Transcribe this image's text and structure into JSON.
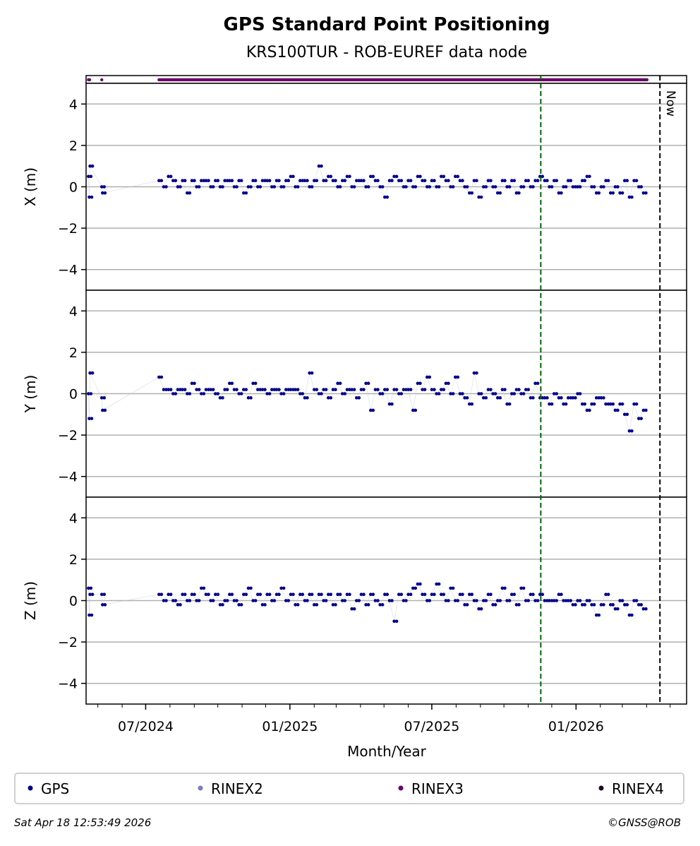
{
  "chart_data": {
    "type": "scatter",
    "title": "GPS Standard Point Positioning",
    "subtitle": "KRS100TUR - ROB-EUREF data node",
    "xlabel": "Month/Year",
    "x_range": [
      "2024-04-16",
      "2026-05-22"
    ],
    "x_ticks": [
      {
        "date": "2024-07-01",
        "label": "07/2024"
      },
      {
        "date": "2025-01-01",
        "label": "01/2025"
      },
      {
        "date": "2025-07-01",
        "label": "07/2025"
      },
      {
        "date": "2026-01-01",
        "label": "01/2026"
      }
    ],
    "minor_ticks": "monthly",
    "ylim": [
      -5,
      5
    ],
    "y_ticks": [
      4,
      2,
      0,
      -2,
      -4
    ],
    "y_tick_labels": [
      "4",
      "2",
      "0",
      "−2",
      "−4"
    ],
    "grid": true,
    "panels": [
      {
        "key": "x",
        "ylabel": "X (m)"
      },
      {
        "key": "y",
        "ylabel": "Y (m)"
      },
      {
        "key": "z",
        "ylabel": "Z (m)"
      }
    ],
    "now_marker": {
      "date": "2026-04-18",
      "label": "Now"
    },
    "green_marker": {
      "date": "2025-11-17"
    },
    "rinex3_availability": [
      [
        "2024-04-19",
        "2024-04-21"
      ],
      [
        "2024-05-06",
        "2024-05-06"
      ],
      [
        "2024-07-18",
        "2026-04-02"
      ]
    ],
    "early_points": {
      "dates": [
        "2024-04-19",
        "2024-04-20",
        "2024-04-21",
        "2024-05-06",
        "2024-05-07"
      ],
      "x": [
        0.5,
        -0.5,
        1.0,
        0,
        -0.3
      ],
      "y": [
        0,
        -1.2,
        1.0,
        -0.2,
        -0.8
      ],
      "z": [
        0.6,
        -0.7,
        0.3,
        0.3,
        -0.2
      ]
    },
    "series_start": "2024-07-18",
    "series_interval_days": 6,
    "x": [
      0.3,
      0,
      0.5,
      0.3,
      0,
      0.3,
      -0.3,
      0.3,
      0,
      0.3,
      0.3,
      0,
      0.3,
      0,
      0.3,
      0.3,
      0,
      0.3,
      -0.3,
      0,
      0.3,
      0,
      0.3,
      0.3,
      0,
      0.3,
      0,
      0.3,
      0.5,
      0,
      0.3,
      0.3,
      0,
      0.3,
      1.0,
      0.3,
      0.5,
      0.3,
      0,
      0.3,
      0.5,
      0,
      0.3,
      0.3,
      0,
      0.5,
      0.3,
      0,
      -0.5,
      0.3,
      0.5,
      0.3,
      0,
      0.3,
      0,
      0.5,
      0.3,
      0,
      0.3,
      0,
      0.5,
      0.3,
      0,
      0.5,
      0.3,
      0,
      -0.3,
      0.3,
      -0.5,
      0,
      0.3,
      0,
      -0.3,
      0.3,
      0,
      0.3,
      -0.3,
      0,
      0.3,
      0,
      0.3,
      0.5,
      0.3,
      0,
      0.3,
      -0.3,
      0,
      0.3,
      0,
      0,
      0.3,
      0.5,
      0,
      -0.3,
      0,
      0.3,
      -0.3,
      0,
      -0.3,
      0.3,
      -0.5,
      0.3,
      0,
      -0.3
    ],
    "y": [
      0.8,
      0.2,
      0.2,
      0,
      0.2,
      0.2,
      0,
      0.5,
      0.2,
      0,
      0.2,
      0.2,
      0,
      -0.2,
      0.2,
      0.5,
      0.2,
      0,
      0.2,
      -0.2,
      0.5,
      0.2,
      0.2,
      0,
      0.2,
      0.2,
      0,
      0.2,
      0.2,
      0.2,
      0,
      -0.2,
      1.0,
      0.2,
      0,
      0.2,
      -0.2,
      0.2,
      0.5,
      0,
      0.2,
      0.2,
      -0.2,
      0.2,
      0.5,
      -0.8,
      0.2,
      0,
      0.2,
      -0.5,
      0.2,
      0,
      0.2,
      0.2,
      -0.8,
      0.5,
      0.2,
      0.8,
      0.2,
      0,
      0.2,
      0.5,
      0,
      0.8,
      0,
      -0.2,
      -0.5,
      1.0,
      0,
      -0.2,
      0.2,
      0,
      -0.2,
      0.2,
      -0.5,
      0,
      0.2,
      0,
      0.2,
      -0.2,
      0.5,
      -0.2,
      -0.2,
      -0.5,
      0,
      -0.2,
      -0.5,
      -0.2,
      -0.2,
      0,
      -0.5,
      -0.8,
      -0.5,
      -0.2,
      -0.2,
      -0.5,
      -0.5,
      -0.8,
      -0.5,
      -1.0,
      -1.8,
      -0.5,
      -1.2,
      -0.8
    ],
    "z": [
      0.3,
      0,
      0.3,
      0,
      -0.2,
      0.3,
      0,
      0.3,
      0,
      0.6,
      0.3,
      0,
      0.3,
      -0.2,
      0,
      0.3,
      0,
      -0.2,
      0.3,
      0.6,
      0,
      0.3,
      -0.2,
      0.3,
      0,
      0.3,
      0.6,
      0,
      0.3,
      -0.2,
      0.3,
      0,
      0.3,
      -0.2,
      0.3,
      0,
      0.3,
      -0.2,
      0.3,
      0,
      0.3,
      -0.4,
      0,
      0.3,
      -0.2,
      0.3,
      0,
      -0.2,
      0.3,
      0,
      -1.0,
      0.3,
      0,
      0.3,
      0.6,
      0.8,
      0.3,
      0,
      0.3,
      0.8,
      0.3,
      0,
      0.6,
      0,
      0.3,
      -0.2,
      0.3,
      0,
      -0.4,
      0,
      0.3,
      -0.2,
      0,
      0.6,
      0,
      0.3,
      -0.2,
      0.6,
      0,
      0.3,
      0,
      0.3,
      0,
      0,
      0,
      0.3,
      0,
      0,
      -0.2,
      0,
      -0.2,
      0,
      -0.2,
      -0.7,
      -0.2,
      0.3,
      -0.2,
      -0.4,
      0,
      -0.2,
      -0.7,
      0,
      -0.2,
      -0.4
    ],
    "legend": [
      {
        "label": "GPS",
        "color": "#00008b"
      },
      {
        "label": "RINEX2",
        "color": "#7b7bc8"
      },
      {
        "label": "RINEX3",
        "color": "#6b0068"
      },
      {
        "label": "RINEX4",
        "color": "#1e0a1e"
      }
    ],
    "legend_placement": "bottom"
  },
  "footer": {
    "timestamp": "Sat Apr 18 12:53:49 2026",
    "copyright": "©GNSS@ROB"
  }
}
